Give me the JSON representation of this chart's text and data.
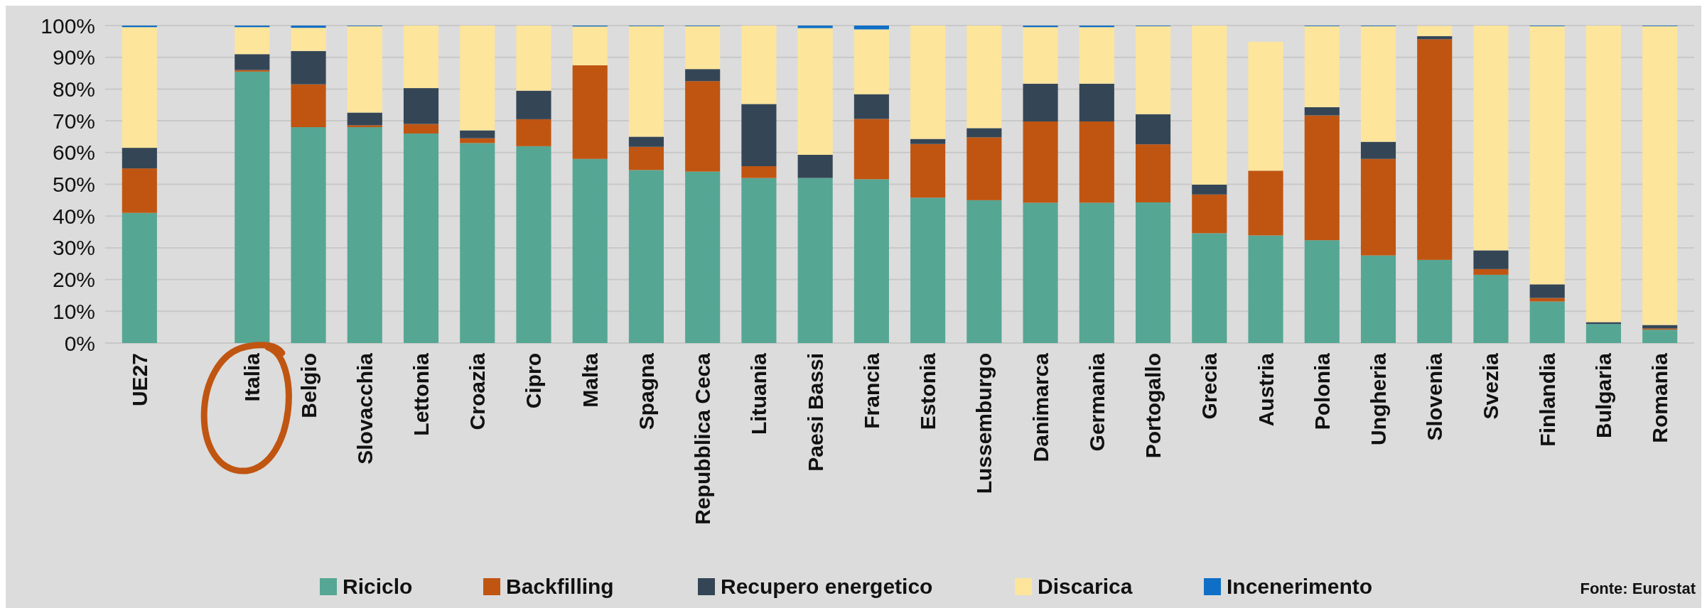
{
  "chart_data": {
    "type": "bar",
    "stacked": true,
    "categories": [
      "UE27",
      null,
      "Italia",
      "Belgio",
      "Slovacchia",
      "Lettonia",
      "Croazia",
      "Cipro",
      "Malta",
      "Spagna",
      "Repubblica Ceca",
      "Lituania",
      "Paesi Bassi",
      "Francia",
      "Estonia",
      "Lussemburgo",
      "Danimarca",
      "Germania",
      "Portogallo",
      "Grecia",
      "Austria",
      "Polonia",
      "Ungheria",
      "Slovenia",
      "Svezia",
      "Finlandia",
      "Bulgaria",
      "Romania"
    ],
    "series": [
      {
        "name": "Riciclo",
        "color": "#56a694",
        "values": [
          41,
          null,
          85.5,
          68,
          68,
          66,
          63,
          62,
          58,
          54.5,
          54,
          52,
          52,
          51.6,
          45.8,
          45,
          44.2,
          44.2,
          44.3,
          34.6,
          33.9,
          32.4,
          27.6,
          26.2,
          21.5,
          13.1,
          6,
          4.2
        ]
      },
      {
        "name": "Backfilling",
        "color": "#c05511",
        "values": [
          14,
          null,
          0.5,
          13.5,
          0.6,
          3,
          1.5,
          8.5,
          29.5,
          7.3,
          28.5,
          3.7,
          0,
          19,
          16.9,
          19.8,
          25.6,
          25.6,
          18.3,
          12.2,
          20.4,
          39.3,
          30.4,
          69.5,
          1.8,
          1.1,
          0,
          0.4
        ]
      },
      {
        "name": "Recupero energetico",
        "color": "#344656",
        "values": [
          6.5,
          null,
          5,
          10.5,
          4,
          11.3,
          2.5,
          9,
          0,
          3.2,
          3.8,
          19.6,
          7.3,
          7.8,
          1.6,
          2.9,
          11.9,
          11.9,
          9.5,
          3.1,
          0,
          2.6,
          5.4,
          1,
          5.9,
          4.3,
          0.6,
          1.1
        ]
      },
      {
        "name": "Discarica",
        "color": "#fde59c",
        "values": [
          38,
          null,
          8.5,
          7.3,
          27.2,
          19.7,
          33,
          20.5,
          12.2,
          34.8,
          13.5,
          24.7,
          39.9,
          20.4,
          35.7,
          32.3,
          17.8,
          17.8,
          27.7,
          50.1,
          40.6,
          25.5,
          36.4,
          3.2,
          70.8,
          81.3,
          93.4,
          94.1
        ]
      },
      {
        "name": "Incenerimento",
        "color": "#0f6fc6",
        "values": [
          0.5,
          null,
          0.5,
          0.7,
          0.2,
          0,
          0,
          0,
          0.3,
          0.2,
          0.2,
          0,
          0.8,
          1.2,
          0,
          0,
          0.5,
          0.5,
          0.2,
          0,
          0,
          0.2,
          0.2,
          0,
          0,
          0.2,
          0,
          0.2
        ]
      }
    ],
    "ylim": [
      0,
      100
    ],
    "yticks": [
      {
        "value": 0,
        "label": "0%"
      },
      {
        "value": 10,
        "label": "10%"
      },
      {
        "value": 20,
        "label": "20%"
      },
      {
        "value": 30,
        "label": "30%"
      },
      {
        "value": 40,
        "label": "40%"
      },
      {
        "value": 50,
        "label": "50%"
      },
      {
        "value": 60,
        "label": "60%"
      },
      {
        "value": 70,
        "label": "70%"
      },
      {
        "value": 80,
        "label": "80%"
      },
      {
        "value": 90,
        "label": "90%"
      },
      {
        "value": 100,
        "label": "100%"
      }
    ],
    "grid": "y",
    "legend": "bottom",
    "annotations": [
      "Fonte: Eurostat"
    ]
  }
}
